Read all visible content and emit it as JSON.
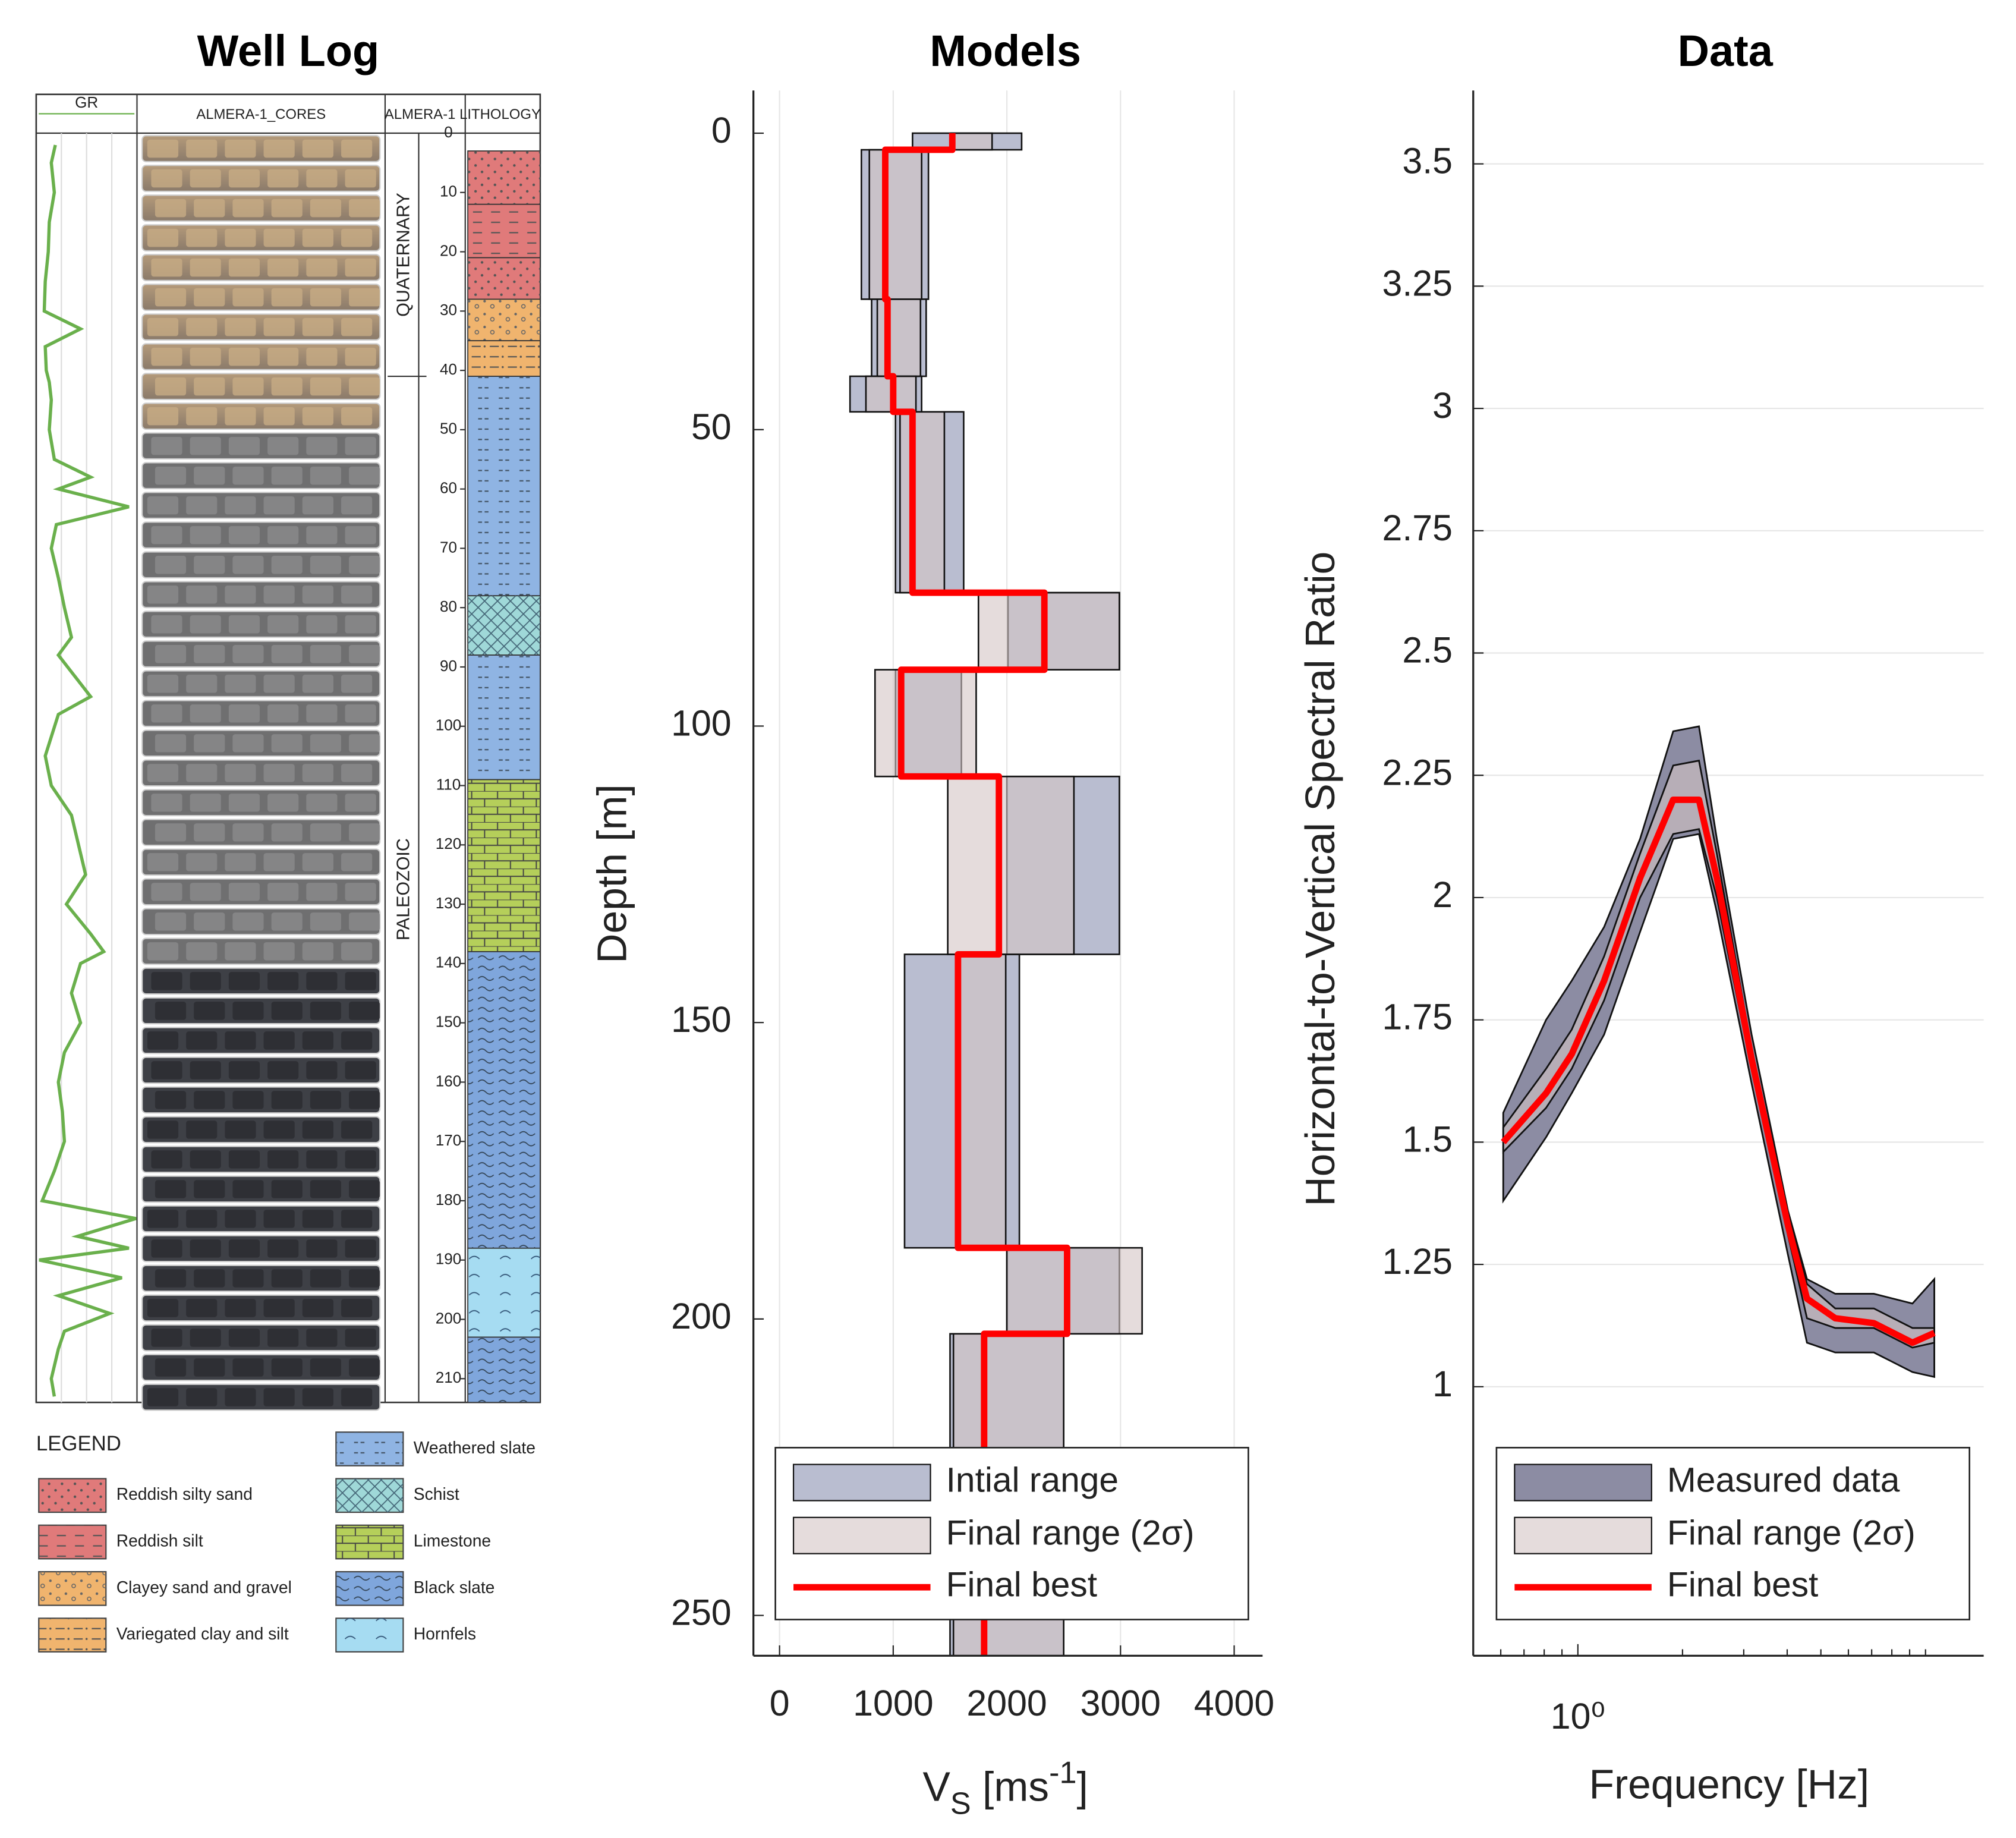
{
  "chart_data": [
    {
      "type": "well_log",
      "title": "Well Log",
      "track_labels": [
        "GR",
        "ALMERA-1_CORES",
        "ALMERA-1 LITHOLOGY"
      ],
      "ylim": [
        0,
        214
      ],
      "yticks": [
        0,
        10,
        20,
        30,
        40,
        50,
        60,
        70,
        80,
        90,
        100,
        110,
        120,
        130,
        140,
        150,
        160,
        170,
        180,
        190,
        200,
        210
      ],
      "eras": [
        {
          "name": "QUATERNARY",
          "top": 0,
          "bottom": 41
        },
        {
          "name": "PALEOZOIC",
          "top": 41,
          "bottom": 214
        }
      ],
      "gr": {
        "color": "#6ab04c",
        "xlim": [
          0,
          100
        ],
        "depth": [
          2,
          5,
          10,
          15,
          20,
          25,
          30,
          33,
          36,
          40,
          42,
          45,
          50,
          55,
          58,
          60,
          63,
          66,
          70,
          75,
          80,
          85,
          88,
          95,
          98,
          105,
          110,
          115,
          120,
          125,
          130,
          135,
          138,
          140,
          145,
          150,
          155,
          160,
          165,
          170,
          175,
          180,
          183,
          186,
          188,
          190,
          193,
          196,
          199,
          202,
          205,
          210,
          213
        ],
        "values": [
          19,
          15,
          18,
          13,
          12,
          9,
          8,
          44,
          9,
          10,
          13,
          15,
          13,
          18,
          54,
          22,
          92,
          20,
          15,
          22,
          28,
          35,
          22,
          54,
          22,
          9,
          15,
          35,
          42,
          49,
          30,
          54,
          67,
          44,
          35,
          44,
          28,
          22,
          26,
          28,
          18,
          6,
          99,
          41,
          92,
          3,
          85,
          22,
          73,
          28,
          22,
          15,
          18
        ]
      },
      "legend_title": "LEGEND",
      "legend": [
        {
          "name": "Reddish silty sand",
          "color": "#e07a7a"
        },
        {
          "name": "Reddish silt",
          "color": "#e07a7a"
        },
        {
          "name": "Clayey sand and gravel",
          "color": "#f0b46e"
        },
        {
          "name": "Variegated clay and silt",
          "color": "#f0b46e"
        },
        {
          "name": "Weathered slate",
          "color": "#8fb4e3"
        },
        {
          "name": "Schist",
          "color": "#9fd8d8"
        },
        {
          "name": "Limestone",
          "color": "#b5cf5a"
        },
        {
          "name": "Black slate",
          "color": "#7fa6dc"
        },
        {
          "name": "Hornfels",
          "color": "#a6dcf2"
        }
      ],
      "layers": [
        {
          "lithology": 0,
          "top": 3,
          "bottom": 12
        },
        {
          "lithology": 1,
          "top": 12,
          "bottom": 21
        },
        {
          "lithology": 0,
          "top": 21,
          "bottom": 28
        },
        {
          "lithology": 2,
          "top": 28,
          "bottom": 35
        },
        {
          "lithology": 3,
          "top": 35,
          "bottom": 41
        },
        {
          "lithology": 4,
          "top": 41,
          "bottom": 78
        },
        {
          "lithology": 5,
          "top": 78,
          "bottom": 88
        },
        {
          "lithology": 4,
          "top": 88,
          "bottom": 109
        },
        {
          "lithology": 6,
          "top": 109,
          "bottom": 138
        },
        {
          "lithology": 7,
          "top": 138,
          "bottom": 188
        },
        {
          "lithology": 8,
          "top": 188,
          "bottom": 203
        },
        {
          "lithology": 7,
          "top": 203,
          "bottom": 214
        }
      ]
    },
    {
      "type": "step_range",
      "title": "Models",
      "xlabel_parts": [
        "V",
        "S",
        " [ms",
        "-1",
        "]"
      ],
      "ylabel": "Depth [m]",
      "xlim": [
        -230,
        4250
      ],
      "xticks": [
        0,
        1000,
        2000,
        3000,
        4000
      ],
      "ylim": [
        -7.2,
        256.8
      ],
      "yticks": [
        0,
        50,
        100,
        150,
        200,
        250
      ],
      "y_reversed": true,
      "grid": "x",
      "legend": [
        {
          "name": "Intial range",
          "color": "#b9bdd0"
        },
        {
          "name": "Final range (2σ)",
          "color": "#d4c5c5"
        },
        {
          "name": "Final best",
          "color": "#ff0000"
        }
      ],
      "layers": [
        {
          "top": 0,
          "bottom": 2.8,
          "initial": [
            1170,
            2130
          ],
          "final": [
            1510,
            1870
          ],
          "best": 1520
        },
        {
          "top": 2.8,
          "bottom": 28,
          "initial": [
            720,
            1310
          ],
          "final": [
            790,
            1250
          ],
          "best": 930
        },
        {
          "top": 28,
          "bottom": 41,
          "initial": [
            810,
            1290
          ],
          "final": [
            860,
            1240
          ],
          "best": 950
        },
        {
          "top": 41,
          "bottom": 47,
          "initial": [
            620,
            1250
          ],
          "final": [
            760,
            1200
          ],
          "best": 1000
        },
        {
          "top": 47,
          "bottom": 77.5,
          "initial": [
            1020,
            1620
          ],
          "final": [
            1060,
            1450
          ],
          "best": 1170
        },
        {
          "top": 77.5,
          "bottom": 90.5,
          "initial": [
            2010,
            2990
          ],
          "final": [
            1750,
            2990
          ],
          "best": 2330
        },
        {
          "top": 90.5,
          "bottom": 108.5,
          "initial": [
            1020,
            1600
          ],
          "final": [
            840,
            1730
          ],
          "best": 1070
        },
        {
          "top": 108.5,
          "bottom": 138.5,
          "initial": [
            2000,
            2990
          ],
          "final": [
            1480,
            2590
          ],
          "best": 1930
        },
        {
          "top": 138.5,
          "bottom": 188,
          "initial": [
            1100,
            2110
          ],
          "final": [
            1560,
            1990
          ],
          "best": 1570
        },
        {
          "top": 188,
          "bottom": 202.5,
          "initial": [
            2000,
            2990
          ],
          "final": [
            2000,
            3190
          ],
          "best": 2530
        },
        {
          "top": 202.5,
          "bottom": 256.8,
          "initial": [
            1500,
            2500
          ],
          "final": [
            1530,
            2500
          ],
          "best": 1800
        }
      ]
    },
    {
      "type": "band_line",
      "title": "Data",
      "xlabel": "Frequency [Hz]",
      "ylabel": "Horizontal-to-Vertical Spectral Ratio",
      "log_x": true,
      "xlim": [
        0.5,
        14.7
      ],
      "xticks": [
        {
          "value": 1,
          "label": "10⁰"
        }
      ],
      "xminor": [
        0.6,
        0.7,
        0.8,
        0.9,
        2,
        3,
        4,
        5,
        6,
        7,
        8,
        9,
        10
      ],
      "ylim": [
        0.45,
        3.65
      ],
      "yticks": [
        1,
        1.25,
        1.5,
        1.75,
        2,
        2.25,
        2.5,
        2.75,
        3,
        3.25,
        3.5
      ],
      "grid": "y",
      "x": [
        0.61,
        0.81,
        0.96,
        1.19,
        1.51,
        1.88,
        2.23,
        2.51,
        3.16,
        4.02,
        4.56,
        5.5,
        7.1,
        9.17,
        10.6
      ],
      "series": [
        {
          "name": "Measured data",
          "color": "#8c8ca3",
          "lower": [
            1.38,
            1.51,
            1.6,
            1.72,
            1.93,
            2.12,
            2.13,
            1.97,
            1.62,
            1.27,
            1.09,
            1.07,
            1.07,
            1.03,
            1.02
          ],
          "upper": [
            1.56,
            1.75,
            1.83,
            1.94,
            2.12,
            2.34,
            2.35,
            2.12,
            1.72,
            1.36,
            1.22,
            1.19,
            1.19,
            1.17,
            1.22
          ]
        },
        {
          "name": "Final range (2σ)",
          "color": "#d4c5c5",
          "lower": [
            1.48,
            1.57,
            1.65,
            1.79,
            2.0,
            2.13,
            2.14,
            2.0,
            1.65,
            1.31,
            1.14,
            1.12,
            1.12,
            1.08,
            1.09
          ],
          "upper": [
            1.53,
            1.65,
            1.73,
            1.88,
            2.09,
            2.27,
            2.28,
            2.09,
            1.69,
            1.35,
            1.21,
            1.16,
            1.16,
            1.12,
            1.12
          ]
        },
        {
          "name": "Final best",
          "color": "#ff0000",
          "values": [
            1.5,
            1.6,
            1.68,
            1.83,
            2.04,
            2.2,
            2.2,
            2.04,
            1.67,
            1.33,
            1.18,
            1.14,
            1.13,
            1.09,
            1.11
          ]
        }
      ]
    }
  ]
}
